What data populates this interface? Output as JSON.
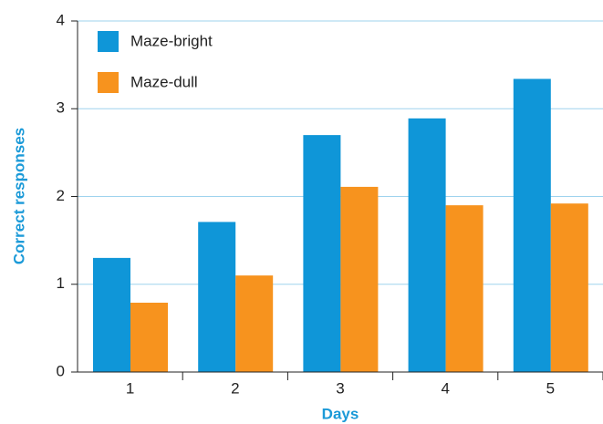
{
  "chart_data": {
    "type": "bar",
    "x_label": "Days",
    "y_label": "Correct responses",
    "categories": [
      "1",
      "2",
      "3",
      "4",
      "5"
    ],
    "series": [
      {
        "name": "Maze-bright",
        "color": "#0f96d8",
        "values": [
          1.3,
          1.71,
          2.7,
          2.89,
          3.34
        ]
      },
      {
        "name": "Maze-dull",
        "color": "#f7931e",
        "values": [
          0.79,
          1.1,
          2.11,
          1.9,
          1.92
        ]
      }
    ],
    "ylim": [
      0,
      4
    ],
    "yticks": [
      0,
      1,
      2,
      3,
      4
    ],
    "grid": true,
    "legend": "upper left"
  }
}
